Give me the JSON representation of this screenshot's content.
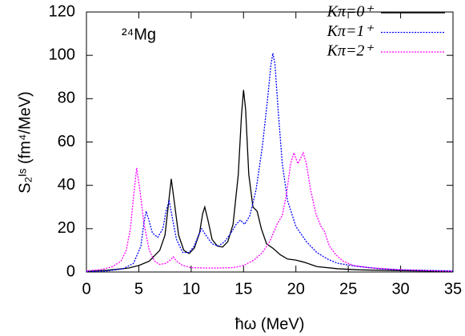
{
  "chart_data": {
    "type": "line",
    "annotation": "²⁴Mg",
    "xlabel": "ħω (MeV)",
    "ylabel": "S₂ᴵˢ (fm⁴/MeV)",
    "xlim": [
      0,
      35
    ],
    "xticks": [
      0,
      5,
      10,
      15,
      20,
      25,
      30,
      35
    ],
    "ylim": [
      0,
      120
    ],
    "yticks": [
      0,
      20,
      40,
      60,
      80,
      100,
      120
    ],
    "legend": "top-right",
    "series": [
      {
        "name": "Kπ=0⁺",
        "color": "#000000",
        "line_style": "solid",
        "x": [
          0,
          2,
          4,
          5,
          6,
          7,
          7.5,
          7.8,
          8.1,
          8.4,
          8.8,
          9.3,
          9.8,
          10.3,
          10.8,
          11.1,
          11.3,
          11.6,
          12,
          12.5,
          13,
          13.5,
          14,
          14.5,
          14.8,
          15,
          15.2,
          15.5,
          15.9,
          16.3,
          16.7,
          17.2,
          17.8,
          18.5,
          19.2,
          20,
          20.8,
          22,
          24,
          26,
          30,
          35
        ],
        "values": [
          0.3,
          0.8,
          1.8,
          3,
          5,
          10,
          17,
          30,
          43,
          32,
          17,
          10,
          8.5,
          11,
          18,
          27,
          30,
          24,
          15,
          12,
          11.5,
          14,
          22,
          45,
          72,
          84,
          75,
          45,
          30,
          28,
          20,
          13,
          11,
          8,
          6,
          5.5,
          4.5,
          2.5,
          1.5,
          1,
          0.6,
          0.3
        ]
      },
      {
        "name": "Kπ=1⁺",
        "color": "#0000ff",
        "line_style": "dotted",
        "x": [
          0,
          2,
          3.5,
          4.5,
          5.2,
          5.5,
          5.7,
          5.9,
          6.3,
          6.8,
          7.3,
          7.6,
          7.9,
          8.2,
          8.6,
          9.2,
          9.8,
          10.3,
          10.7,
          11,
          11.4,
          12,
          12.6,
          13.2,
          13.8,
          14.3,
          14.7,
          15.1,
          15.6,
          16.2,
          16.8,
          17.3,
          17.6,
          17.8,
          18,
          18.3,
          18.7,
          19.2,
          20,
          21,
          22,
          23,
          24,
          26,
          28,
          30,
          35
        ],
        "values": [
          0.2,
          0.5,
          1.5,
          4,
          12,
          23,
          28,
          25,
          18,
          16,
          20,
          28,
          33,
          25,
          15,
          9,
          9,
          12,
          17,
          20,
          17,
          13,
          12,
          14,
          18,
          22,
          24,
          22,
          26,
          38,
          58,
          80,
          95,
          101,
          96,
          75,
          50,
          33,
          21,
          14,
          9,
          6,
          4,
          2.5,
          1.5,
          1,
          0.5
        ]
      },
      {
        "name": "Kπ=2⁺",
        "color": "#ff00ff",
        "line_style": "dotted",
        "x": [
          0,
          1.5,
          2.5,
          3.3,
          3.8,
          4.2,
          4.5,
          4.8,
          5.1,
          5.5,
          6,
          6.5,
          7,
          7.6,
          8,
          8.3,
          8.6,
          9.2,
          10,
          12,
          14,
          15,
          16,
          16.8,
          17.5,
          18.2,
          18.7,
          19.1,
          19.5,
          19.8,
          20.2,
          20.5,
          20.7,
          21,
          21.4,
          21.9,
          22.4,
          22.7,
          23.2,
          23.8,
          24.5,
          25.5,
          27,
          30,
          35
        ],
        "values": [
          0.5,
          1.2,
          2.5,
          5,
          10,
          20,
          35,
          48,
          38,
          22,
          10,
          5,
          3.5,
          4,
          5.5,
          7,
          5,
          3,
          2,
          1.8,
          2,
          3,
          5.5,
          9,
          14,
          22,
          26,
          36,
          50,
          55,
          50,
          53,
          55,
          50,
          38,
          27,
          21,
          19,
          12,
          8,
          5,
          3,
          2,
          1,
          0.3
        ]
      }
    ]
  }
}
